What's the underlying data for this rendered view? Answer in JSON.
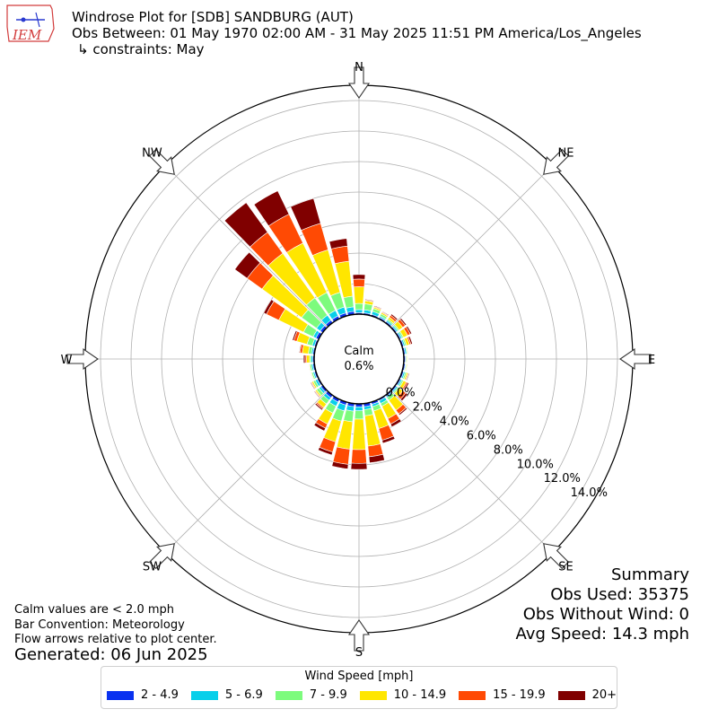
{
  "header": {
    "title": "Windrose Plot for [SDB] SANDBURG (AUT)",
    "period": "Obs Between: 01 May 1970 02:00 AM - 31 May 2025 11:51 PM America/Los_Angeles",
    "constraints": "↳ constraints: May",
    "logo_text": "IEM"
  },
  "summary": {
    "heading": "Summary",
    "obs_used": "Obs Used: 35375",
    "obs_without_wind": "Obs Without Wind: 0",
    "avg_speed": "Avg Speed: 14.3 mph"
  },
  "notes": {
    "calm_note": "Calm values are < 2.0 mph",
    "bar_convention": "Bar Convention: Meteorology",
    "flow_note": "Flow arrows relative to plot center.",
    "generated": "Generated: 06 Jun 2025"
  },
  "chart_data": {
    "type": "windrose",
    "calm_label": "Calm",
    "calm_value": "0.6%",
    "radial_unit": "%",
    "radial_max": 15,
    "radial_ticks": [
      0,
      2,
      4,
      6,
      8,
      10,
      12,
      14
    ],
    "radial_tick_labels": [
      "0.0%",
      "2.0%",
      "4.0%",
      "6.0%",
      "8.0%",
      "10.0%",
      "12.0%",
      "14.0%"
    ],
    "compass_labels": [
      "N",
      "NE",
      "E",
      "SE",
      "S",
      "SW",
      "W",
      "NW"
    ],
    "legend_title": "Wind Speed [mph]",
    "bins": [
      {
        "label": "2 - 4.9",
        "color": "#0a32f0"
      },
      {
        "label": "5 - 6.9",
        "color": "#08cfea"
      },
      {
        "label": "7 - 9.9",
        "color": "#7dfb7d"
      },
      {
        "label": "10 - 14.9",
        "color": "#ffe600"
      },
      {
        "label": "15 - 19.9",
        "color": "#ff4a04"
      },
      {
        "label": "20+",
        "color": "#800000"
      }
    ],
    "directions_deg": [
      0,
      10,
      20,
      30,
      40,
      50,
      60,
      70,
      80,
      90,
      100,
      110,
      120,
      130,
      140,
      150,
      160,
      170,
      180,
      190,
      200,
      210,
      220,
      230,
      240,
      250,
      260,
      270,
      280,
      290,
      300,
      310,
      320,
      330,
      340,
      350
    ],
    "cumulative": [
      [
        0.1,
        0.3,
        0.7,
        1.8,
        2.3,
        2.6
      ],
      [
        0.1,
        0.3,
        0.7,
        0.9,
        0.95,
        1.0
      ],
      [
        0.1,
        0.3,
        0.5,
        0.6,
        0.65,
        0.7
      ],
      [
        0.1,
        0.2,
        0.35,
        0.45,
        0.5,
        0.55
      ],
      [
        0.1,
        0.2,
        0.3,
        0.45,
        0.6,
        0.7
      ],
      [
        0.1,
        0.2,
        0.3,
        0.6,
        0.8,
        0.9
      ],
      [
        0.1,
        0.2,
        0.3,
        0.6,
        0.8,
        0.9
      ],
      [
        0.1,
        0.2,
        0.3,
        0.5,
        0.6,
        0.7
      ],
      [
        0.1,
        0.2,
        0.25,
        0.3,
        0.33,
        0.35
      ],
      [
        0.1,
        0.15,
        0.2,
        0.25,
        0.28,
        0.3
      ],
      [
        0.1,
        0.15,
        0.2,
        0.25,
        0.28,
        0.3
      ],
      [
        0.1,
        0.2,
        0.3,
        0.4,
        0.45,
        0.5
      ],
      [
        0.1,
        0.2,
        0.3,
        0.5,
        0.6,
        0.7
      ],
      [
        0.1,
        0.2,
        0.3,
        0.6,
        0.85,
        1.0
      ],
      [
        0.1,
        0.2,
        0.4,
        1.2,
        1.5,
        1.6
      ],
      [
        0.1,
        0.3,
        0.5,
        1.4,
        1.8,
        2.0
      ],
      [
        0.15,
        0.3,
        0.6,
        1.8,
        2.6,
        2.8
      ],
      [
        0.2,
        0.4,
        0.8,
        2.8,
        3.5,
        3.9
      ],
      [
        0.2,
        0.45,
        1.0,
        3.0,
        3.9,
        4.3
      ],
      [
        0.2,
        0.5,
        1.2,
        3.0,
        4.0,
        4.3
      ],
      [
        0.2,
        0.6,
        1.3,
        2.7,
        3.4,
        3.6
      ],
      [
        0.2,
        0.5,
        1.0,
        1.8,
        2.1,
        2.3
      ],
      [
        0.2,
        0.4,
        0.7,
        1.0,
        1.1,
        1.2
      ],
      [
        0.15,
        0.3,
        0.5,
        0.6,
        0.65,
        0.7
      ],
      [
        0.1,
        0.25,
        0.4,
        0.5,
        0.55,
        0.6
      ],
      [
        0.1,
        0.2,
        0.3,
        0.35,
        0.38,
        0.4
      ],
      [
        0.1,
        0.2,
        0.3,
        0.35,
        0.38,
        0.4
      ],
      [
        0.1,
        0.2,
        0.3,
        0.5,
        0.6,
        0.7
      ],
      [
        0.1,
        0.2,
        0.4,
        0.8,
        0.95,
        1.0
      ],
      [
        0.1,
        0.25,
        0.6,
        1.3,
        1.5,
        1.6
      ],
      [
        0.2,
        0.4,
        1.1,
        2.9,
        3.8,
        4.0
      ],
      [
        0.2,
        0.5,
        1.7,
        4.9,
        6.1,
        7.1
      ],
      [
        0.2,
        0.6,
        2.0,
        5.6,
        7.3,
        9.7
      ],
      [
        0.2,
        0.6,
        1.9,
        5.5,
        7.6,
        9.3
      ],
      [
        0.2,
        0.6,
        1.6,
        4.5,
        6.3,
        8.0
      ],
      [
        0.2,
        0.5,
        1.2,
        3.5,
        4.5,
        5.0
      ]
    ]
  }
}
